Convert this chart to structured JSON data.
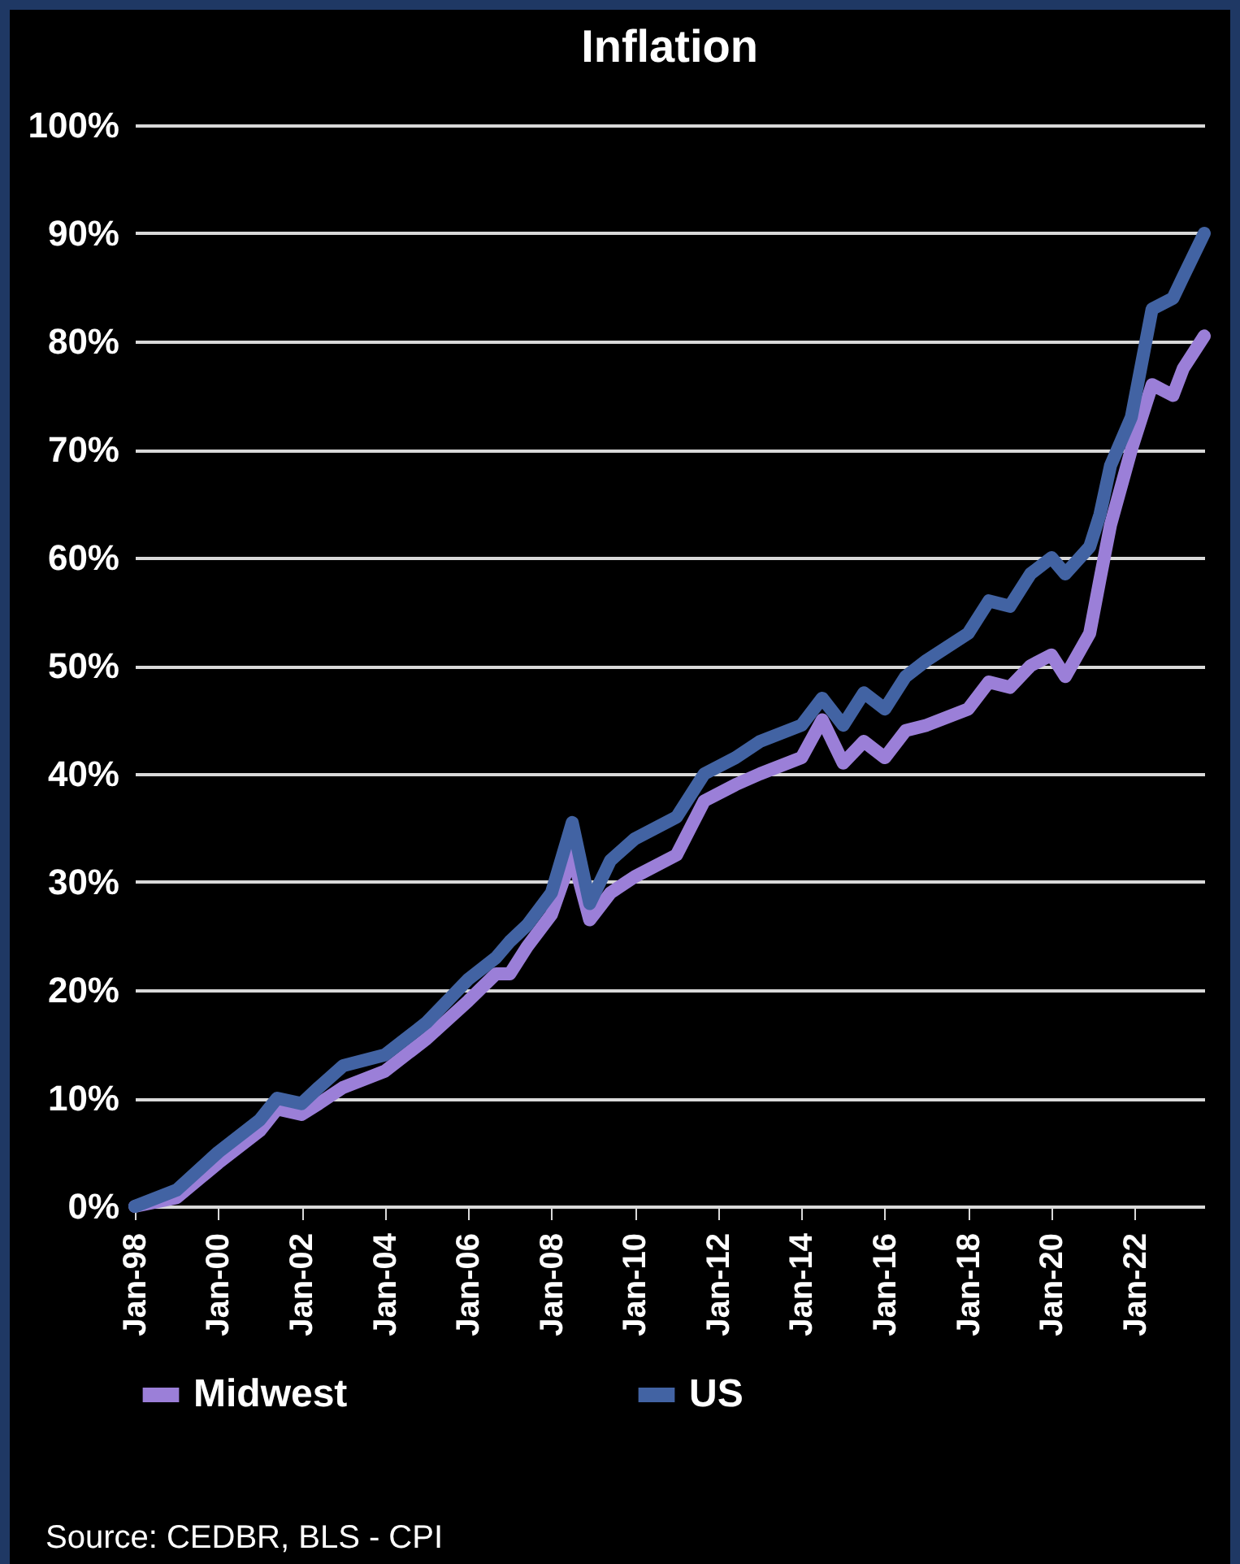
{
  "chart_data": {
    "type": "line",
    "title": "Inflation",
    "annotations": [
      "Source: CEDBR, BLS - CPI"
    ],
    "series": [
      {
        "name": "Midwest",
        "color": "#9b7fd8",
        "x": [
          "1998-01",
          "1999-01",
          "2000-01",
          "2001-01",
          "2001-06",
          "2002-01",
          "2002-06",
          "2003-01",
          "2004-01",
          "2005-01",
          "2006-01",
          "2006-09",
          "2007-01",
          "2007-06",
          "2008-01",
          "2008-07",
          "2008-12",
          "2009-06",
          "2010-01",
          "2011-01",
          "2011-09",
          "2012-06",
          "2013-01",
          "2014-01",
          "2014-07",
          "2015-01",
          "2015-07",
          "2016-01",
          "2016-07",
          "2017-01",
          "2018-01",
          "2018-07",
          "2019-01",
          "2019-07",
          "2020-01",
          "2020-05",
          "2020-12",
          "2021-03",
          "2021-06",
          "2021-12",
          "2022-06",
          "2022-12",
          "2023-03",
          "2023-09"
        ],
        "values": [
          0,
          0.8,
          4,
          7,
          9,
          8.5,
          9.5,
          11,
          12.5,
          15.5,
          19,
          21.5,
          21.5,
          24,
          27,
          32.5,
          26.5,
          29,
          30.5,
          32.5,
          37.5,
          39,
          40,
          41.5,
          45,
          41,
          43,
          41.5,
          44,
          44.5,
          46,
          48.5,
          48,
          50,
          51,
          49,
          53,
          58,
          63,
          70,
          76,
          75,
          77.5,
          80.5
        ]
      },
      {
        "name": "US",
        "color": "#4263a3",
        "x": [
          "1998-01",
          "1999-01",
          "2000-01",
          "2001-01",
          "2001-06",
          "2002-01",
          "2002-06",
          "2003-01",
          "2004-01",
          "2005-01",
          "2006-01",
          "2006-09",
          "2007-01",
          "2007-06",
          "2008-01",
          "2008-07",
          "2008-12",
          "2009-06",
          "2010-01",
          "2011-01",
          "2011-09",
          "2012-06",
          "2013-01",
          "2014-01",
          "2014-07",
          "2015-01",
          "2015-07",
          "2016-01",
          "2016-07",
          "2017-01",
          "2018-01",
          "2018-07",
          "2019-01",
          "2019-07",
          "2020-01",
          "2020-05",
          "2020-12",
          "2021-03",
          "2021-06",
          "2021-12",
          "2022-06",
          "2022-12",
          "2023-03",
          "2023-09"
        ],
        "values": [
          0,
          1.5,
          5,
          8,
          10,
          9.5,
          11,
          13,
          14,
          17,
          21,
          23,
          24.5,
          26,
          29,
          35.5,
          28,
          32,
          34,
          36,
          40,
          41.5,
          43,
          44.5,
          47,
          44.5,
          47.5,
          46,
          49,
          50.5,
          53,
          56,
          55.5,
          58.5,
          60,
          58.5,
          61,
          64,
          68.5,
          73,
          83,
          84,
          86,
          90
        ]
      }
    ],
    "xlim": [
      "1998-01",
      "2023-09"
    ],
    "xticks": [
      {
        "value": "1998-01",
        "label": "Jan-98"
      },
      {
        "value": "2000-01",
        "label": "Jan-00"
      },
      {
        "value": "2002-01",
        "label": "Jan-02"
      },
      {
        "value": "2004-01",
        "label": "Jan-04"
      },
      {
        "value": "2006-01",
        "label": "Jan-06"
      },
      {
        "value": "2008-01",
        "label": "Jan-08"
      },
      {
        "value": "2010-01",
        "label": "Jan-10"
      },
      {
        "value": "2012-01",
        "label": "Jan-12"
      },
      {
        "value": "2014-01",
        "label": "Jan-14"
      },
      {
        "value": "2016-01",
        "label": "Jan-16"
      },
      {
        "value": "2018-01",
        "label": "Jan-18"
      },
      {
        "value": "2020-01",
        "label": "Jan-20"
      },
      {
        "value": "2022-01",
        "label": "Jan-22"
      }
    ],
    "ylim": [
      0,
      100
    ],
    "yticks": [
      {
        "value": 0,
        "label": "0%"
      },
      {
        "value": 10,
        "label": "10%"
      },
      {
        "value": 20,
        "label": "20%"
      },
      {
        "value": 30,
        "label": "30%"
      },
      {
        "value": 40,
        "label": "40%"
      },
      {
        "value": 50,
        "label": "50%"
      },
      {
        "value": 60,
        "label": "60%"
      },
      {
        "value": 70,
        "label": "70%"
      },
      {
        "value": 80,
        "label": "80%"
      },
      {
        "value": 90,
        "label": "90%"
      },
      {
        "value": 100,
        "label": "100%"
      }
    ],
    "grid": "y",
    "legend": "bottom",
    "marker": "none",
    "line_style": "solid"
  }
}
